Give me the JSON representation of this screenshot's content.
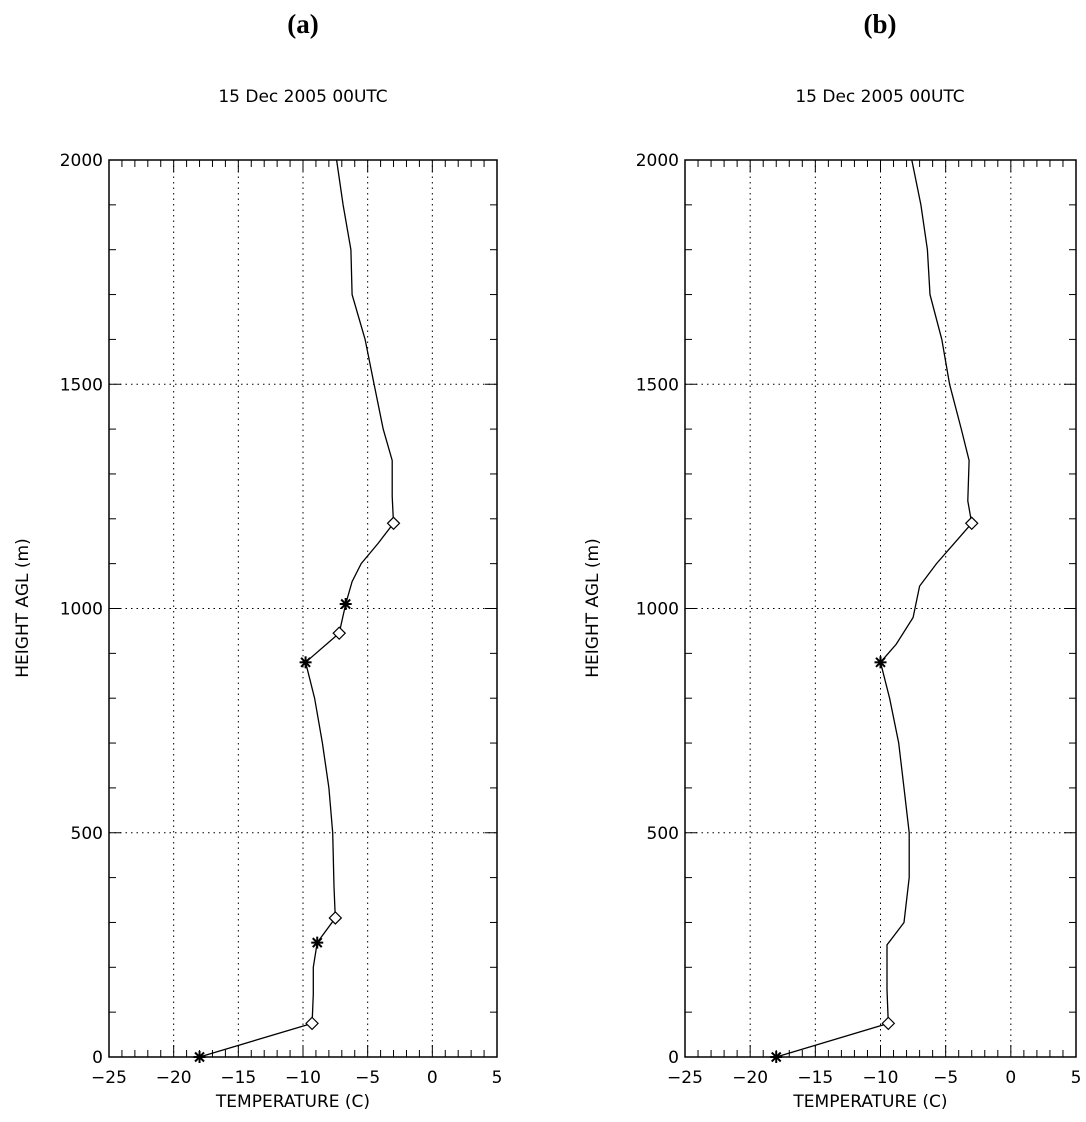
{
  "chart_data": [
    {
      "panel_label": "(a)",
      "type": "line",
      "title": "15 Dec 2005 00UTC",
      "xlabel": "TEMPERATURE (C)",
      "ylabel": "HEIGHT AGL (m)",
      "xlim": [
        -25,
        5
      ],
      "ylim": [
        0,
        2000
      ],
      "x_ticks": [
        -25,
        -20,
        -15,
        -10,
        -5,
        0,
        5
      ],
      "y_ticks": [
        0,
        500,
        1000,
        1500,
        2000
      ],
      "grid": "dotted",
      "series": [
        {
          "profile": [
            [
              -18.0,
              0
            ],
            [
              -9.3,
              75
            ],
            [
              -9.2,
              140
            ],
            [
              -9.2,
              200
            ],
            [
              -8.9,
              255
            ],
            [
              -7.5,
              310
            ],
            [
              -7.6,
              380
            ],
            [
              -7.7,
              500
            ],
            [
              -8.0,
              600
            ],
            [
              -8.5,
              700
            ],
            [
              -9.1,
              800
            ],
            [
              -9.8,
              880
            ],
            [
              -7.2,
              945
            ],
            [
              -6.7,
              1010
            ],
            [
              -6.2,
              1060
            ],
            [
              -5.5,
              1100
            ],
            [
              -4.2,
              1145
            ],
            [
              -3.0,
              1190
            ],
            [
              -3.1,
              1250
            ],
            [
              -3.1,
              1330
            ],
            [
              -3.8,
              1400
            ],
            [
              -4.5,
              1500
            ],
            [
              -5.2,
              1600
            ],
            [
              -6.2,
              1700
            ],
            [
              -6.3,
              1800
            ],
            [
              -6.9,
              1900
            ],
            [
              -7.4,
              2000
            ]
          ]
        }
      ],
      "markers": [
        {
          "symbol": "star",
          "x": -18.0,
          "y": 0
        },
        {
          "symbol": "diamond",
          "x": -9.3,
          "y": 75
        },
        {
          "symbol": "star",
          "x": -8.9,
          "y": 255
        },
        {
          "symbol": "diamond",
          "x": -7.5,
          "y": 310
        },
        {
          "symbol": "star",
          "x": -9.8,
          "y": 880
        },
        {
          "symbol": "diamond",
          "x": -7.2,
          "y": 945
        },
        {
          "symbol": "star",
          "x": -6.7,
          "y": 1010
        },
        {
          "symbol": "diamond",
          "x": -3.0,
          "y": 1190
        }
      ]
    },
    {
      "panel_label": "(b)",
      "type": "line",
      "title": "15 Dec 2005 00UTC",
      "xlabel": "TEMPERATURE (C)",
      "ylabel": "HEIGHT AGL (m)",
      "xlim": [
        -25,
        5
      ],
      "ylim": [
        0,
        2000
      ],
      "x_ticks": [
        -25,
        -20,
        -15,
        -10,
        -5,
        0,
        5
      ],
      "y_ticks": [
        0,
        500,
        1000,
        1500,
        2000
      ],
      "grid": "dotted",
      "series": [
        {
          "profile": [
            [
              -18.0,
              0
            ],
            [
              -9.4,
              75
            ],
            [
              -9.5,
              150
            ],
            [
              -9.5,
              250
            ],
            [
              -8.2,
              300
            ],
            [
              -7.8,
              400
            ],
            [
              -7.8,
              500
            ],
            [
              -8.2,
              600
            ],
            [
              -8.6,
              700
            ],
            [
              -9.3,
              800
            ],
            [
              -10.0,
              880
            ],
            [
              -8.8,
              920
            ],
            [
              -7.5,
              980
            ],
            [
              -7.0,
              1050
            ],
            [
              -5.7,
              1100
            ],
            [
              -4.2,
              1150
            ],
            [
              -3.0,
              1190
            ],
            [
              -3.3,
              1240
            ],
            [
              -3.2,
              1330
            ],
            [
              -3.8,
              1400
            ],
            [
              -4.7,
              1500
            ],
            [
              -5.3,
              1600
            ],
            [
              -6.2,
              1700
            ],
            [
              -6.4,
              1800
            ],
            [
              -6.9,
              1900
            ],
            [
              -7.6,
              2000
            ]
          ]
        }
      ],
      "markers": [
        {
          "symbol": "star",
          "x": -18.0,
          "y": 0
        },
        {
          "symbol": "diamond",
          "x": -9.4,
          "y": 75
        },
        {
          "symbol": "star",
          "x": -10.0,
          "y": 880
        },
        {
          "symbol": "diamond",
          "x": -3.0,
          "y": 1190
        }
      ]
    }
  ]
}
